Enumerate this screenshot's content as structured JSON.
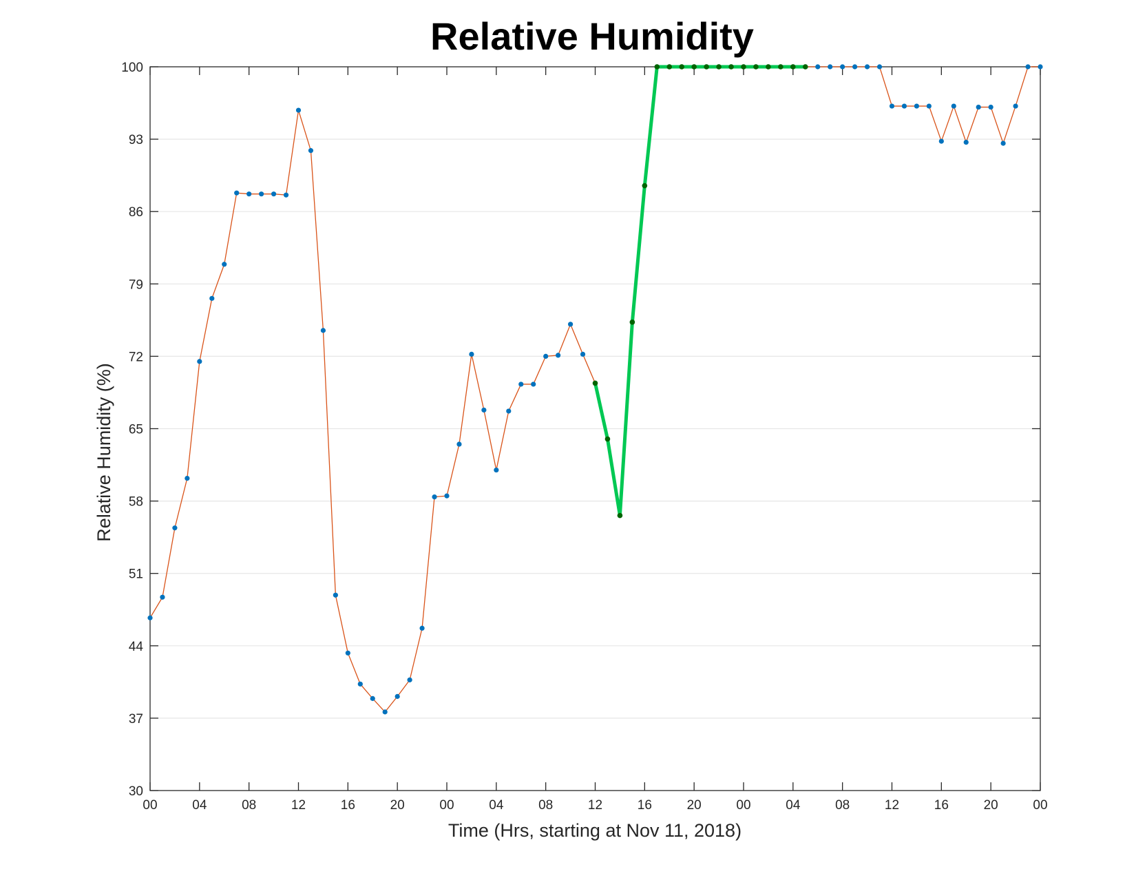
{
  "chart_data": {
    "type": "line",
    "title": "Relative Humidity",
    "xlabel": "Time (Hrs, starting at Nov 11, 2018)",
    "ylabel": "Relative Humidity (%)",
    "x_start": "2018-11-11 00:00",
    "x_step_hours": 1,
    "xlim": [
      0,
      72
    ],
    "ylim": [
      30,
      100
    ],
    "xticks": [
      0,
      4,
      8,
      12,
      16,
      20,
      24,
      28,
      32,
      36,
      40,
      44,
      48,
      52,
      56,
      60,
      64,
      68,
      72
    ],
    "xtick_labels": [
      "00",
      "04",
      "08",
      "12",
      "16",
      "20",
      "00",
      "04",
      "08",
      "12",
      "16",
      "20",
      "00",
      "04",
      "08",
      "12",
      "16",
      "20",
      "00"
    ],
    "yticks": [
      30,
      37,
      44,
      51,
      58,
      65,
      72,
      79,
      86,
      93,
      100
    ],
    "ytick_labels": [
      "30",
      "37",
      "44",
      "51",
      "58",
      "65",
      "72",
      "79",
      "86",
      "93",
      "100"
    ],
    "grid": "y",
    "legend": "none",
    "colors": {
      "main_line": "#d95319",
      "main_marker": "#0072bd",
      "highlight_line": "#00c853",
      "highlight_marker": "#006400",
      "grid": "#e6e6e6",
      "axis": "#262626"
    },
    "series": [
      {
        "values": [
          46.7,
          48.7,
          55.4,
          60.2,
          71.5,
          77.6,
          80.9,
          87.8,
          87.7,
          87.7,
          87.7,
          87.6,
          95.8,
          91.9,
          74.5,
          48.9,
          43.3,
          40.3,
          38.9,
          37.6,
          39.1,
          40.7,
          45.7,
          58.4,
          58.5,
          63.5,
          72.2,
          66.8,
          61.0,
          66.7,
          69.3,
          69.3,
          72.0,
          72.1,
          75.1,
          72.2,
          69.4,
          64.0,
          56.6,
          75.3,
          88.5,
          100,
          100,
          100,
          100,
          100,
          100,
          100,
          100,
          100,
          100,
          100,
          100,
          100,
          100,
          100,
          100,
          100,
          100,
          100,
          96.2,
          96.2,
          96.2,
          96.2,
          92.8,
          96.2,
          92.7,
          96.1,
          96.1,
          92.6,
          96.2,
          100,
          100
        ]
      },
      {
        "x_start_index": 36,
        "values": [
          69.4,
          64.0,
          56.6,
          75.3,
          88.5,
          100,
          100,
          100,
          100,
          100,
          100,
          100,
          100,
          100,
          100,
          100,
          100,
          100
        ]
      }
    ]
  }
}
